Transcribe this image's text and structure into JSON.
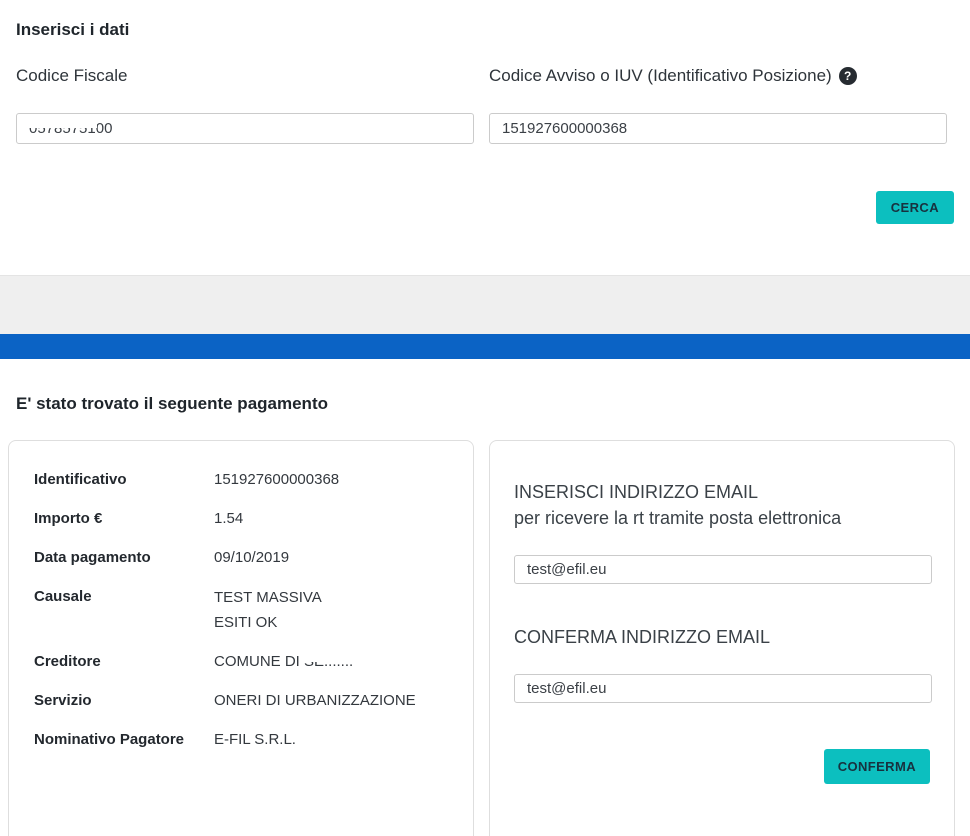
{
  "search_section": {
    "title": "Inserisci i dati",
    "fiscal_code": {
      "label": "Codice Fiscale",
      "value_redacted_part": "05785751",
      "value_visible_part": "00"
    },
    "iuv": {
      "label": "Codice Avviso o IUV (Identificativo Posizione)",
      "help_icon": "?",
      "value": "151927600000368"
    },
    "search_button_label": "CERCA"
  },
  "result_section": {
    "title": "E' stato trovato il seguente pagamento",
    "payment_rows": [
      {
        "label": "Identificativo",
        "value": "151927600000368"
      },
      {
        "label": "Importo €",
        "value": "1.54"
      },
      {
        "label": "Data pagamento",
        "value": "09/10/2019"
      },
      {
        "label": "Causale",
        "value": "TEST MASSIVA",
        "value_line2": "ESITI OK"
      },
      {
        "label": "Creditore",
        "value": "COMUNE DI ",
        "value_redacted_part": "SE......."
      },
      {
        "label": "Servizio",
        "value": "ONERI DI URBANIZZAZIONE"
      },
      {
        "label": "Nominativo Pagatore",
        "value": "E-FIL S.R.L."
      }
    ],
    "email_form": {
      "title_line1": "INSERISCI INDIRIZZO EMAIL",
      "title_line2": "per ricevere la rt tramite posta elettronica",
      "email_value": "test@efil.eu",
      "confirm_label": "CONFERMA INDIRIZZO EMAIL",
      "confirm_email_value": "test@efil.eu",
      "confirm_button_label": "CONFERMA"
    }
  },
  "colors": {
    "accent_teal": "#0cbfbf",
    "brand_blue": "#0b63c5",
    "band_gray": "#efefef",
    "text_dark": "#262b31"
  }
}
